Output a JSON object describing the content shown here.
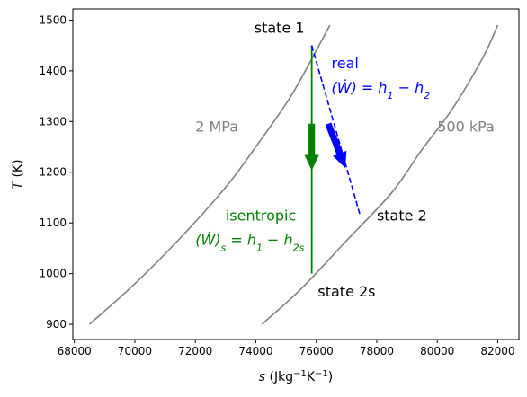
{
  "chart_data": {
    "type": "line",
    "xlabel_main": "s",
    "xlabel_unit": "(Jkg",
    "xlabel_exp1": "−1",
    "xlabel_mid": "K",
    "xlabel_exp2": "−1",
    "xlabel_close": ")",
    "ylabel_main": "T",
    "ylabel_unit": "(K)",
    "xlim": [
      67950,
      82700
    ],
    "ylim": [
      870,
      1522
    ],
    "xticks": [
      68000,
      70000,
      72000,
      74000,
      76000,
      78000,
      80000,
      82000
    ],
    "yticks": [
      900,
      1000,
      1100,
      1200,
      1300,
      1400,
      1500
    ],
    "series": [
      {
        "name": "2 MPa",
        "color": "#808080",
        "x": [
          68500,
          70000,
          71500,
          73000,
          74000,
          75000,
          75500,
          76000,
          76450
        ],
        "y": [
          900,
          980,
          1070,
          1170,
          1250,
          1335,
          1385,
          1440,
          1490
        ]
      },
      {
        "name": "500 kPa",
        "color": "#808080",
        "x": [
          74200,
          75500,
          77000,
          78500,
          79500,
          80500,
          81500,
          82000
        ],
        "y": [
          900,
          970,
          1065,
          1160,
          1245,
          1325,
          1425,
          1490
        ]
      }
    ],
    "processes": [
      {
        "name": "isentropic",
        "color": "#008000",
        "style": "solid",
        "x": [
          75850,
          75850
        ],
        "y": [
          1450,
          1000
        ]
      },
      {
        "name": "real",
        "color": "#0000ff",
        "style": "dashed",
        "x": [
          75850,
          77450
        ],
        "y": [
          1450,
          1115
        ]
      }
    ],
    "arrows": [
      {
        "color": "#008000",
        "x": [
          75850,
          75850
        ],
        "y": [
          1295,
          1205
        ]
      },
      {
        "color": "#0000ff",
        "x": [
          76400,
          76950
        ],
        "y": [
          1295,
          1210
        ]
      }
    ],
    "annotations": {
      "state1": {
        "text": "state 1",
        "x": 73950,
        "y": 1475,
        "color": "#000000"
      },
      "state2": {
        "text": "state 2",
        "x": 78000,
        "y": 1105,
        "color": "#000000"
      },
      "state2s": {
        "text": "state 2s",
        "x": 76050,
        "y": 955,
        "color": "#000000"
      },
      "p_high": {
        "text": "2 MPa",
        "x": 72000,
        "y": 1280,
        "color": "#808080"
      },
      "p_low": {
        "text": "500 kPa",
        "x": 80000,
        "y": 1280,
        "color": "#808080"
      },
      "real_label": {
        "text": "real",
        "x": 76500,
        "y": 1405,
        "color": "#0000ff"
      },
      "real_eq_lhs": {
        "text": "(Ẇ) = h",
        "x": 76500,
        "y": 1357,
        "color": "#0000ff"
      },
      "real_eq_s1": "1",
      "real_eq_mid": " − h",
      "real_eq_s2": "2",
      "isen_label": {
        "text": "isentropic",
        "x": 73000,
        "y": 1105,
        "color": "#008000"
      },
      "isen_eq_lhs": {
        "text": "(Ẇ)",
        "x": 72000,
        "y": 1057,
        "color": "#008000"
      },
      "isen_eq_sub": "s",
      "isen_eq_mid": " = h",
      "isen_eq_s1": "1",
      "isen_eq_mid2": " − h",
      "isen_eq_s2": "2s"
    }
  }
}
